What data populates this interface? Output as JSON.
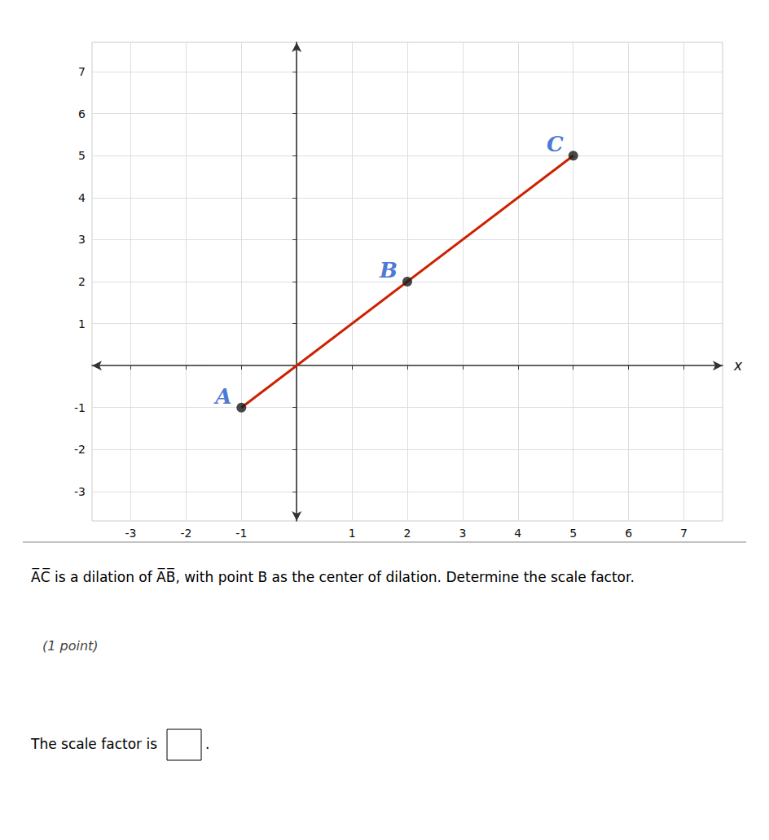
{
  "chart_data": {
    "type": "scatter",
    "xlabel": "x",
    "xlim": [
      -3.7,
      7.7
    ],
    "ylim": [
      -3.7,
      7.7
    ],
    "xticks": [
      -3,
      -2,
      -1,
      {
        "value": 0,
        "label": null
      },
      1,
      2,
      3,
      4,
      5,
      6,
      7
    ],
    "yticks": [
      -3,
      -2,
      -1,
      {
        "value": 0,
        "label": null
      },
      1,
      2,
      3,
      4,
      5,
      6,
      7
    ],
    "grid": true,
    "series": [
      {
        "type": "line",
        "color": "#cc2200",
        "x": [
          -1,
          5
        ],
        "values": [
          -1,
          5
        ]
      },
      {
        "type": "scatter",
        "color": "#1a1a1a",
        "x": [
          -1,
          2,
          5
        ],
        "values": [
          -1,
          2,
          5
        ]
      }
    ],
    "annotations": [
      {
        "text": "A",
        "x": -1,
        "y": -1,
        "color": "#1a55cc"
      },
      {
        "text": "B",
        "x": 2,
        "y": 2,
        "color": "#1a55cc"
      },
      {
        "text": "C",
        "x": 5,
        "y": 5,
        "color": "#1a55cc"
      }
    ],
    "text_below": {
      "question": "A̅C̅ is a dilation of A̅B̅, with point B as the center of dilation. Determine the scale factor.",
      "points": "(1 point)",
      "prompt": "The scale factor is",
      "end": "."
    }
  }
}
